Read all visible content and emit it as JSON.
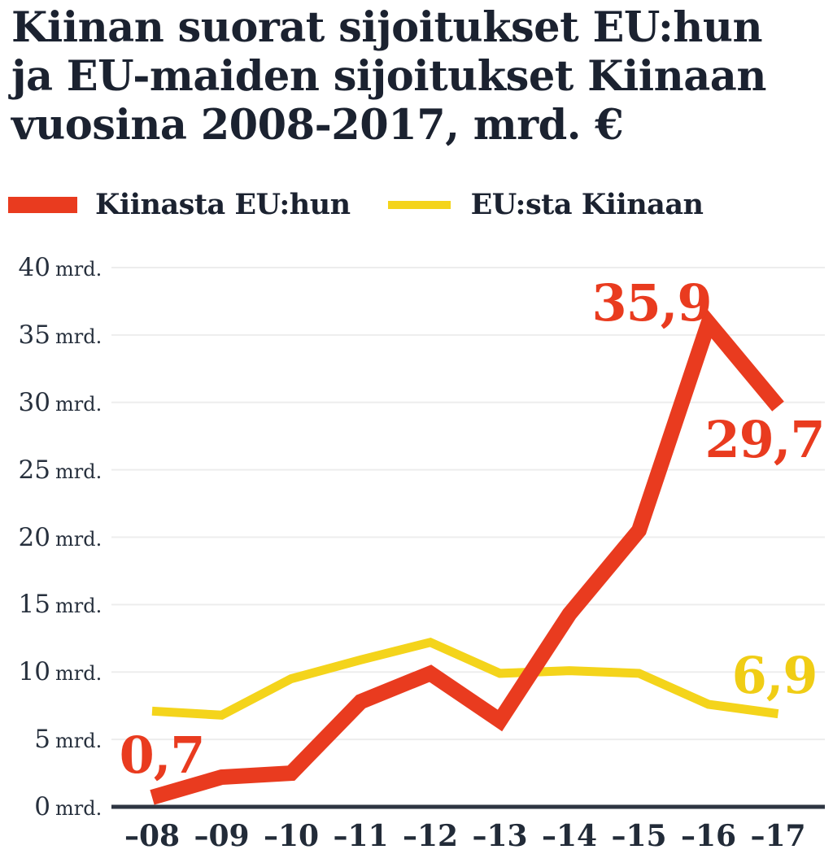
{
  "title": {
    "lines": [
      "Kiinan suorat sijoitukset EU:hun",
      "ja EU-maiden sijoitukset Kiinaan",
      "vuosina 2008-2017, mrd. €"
    ]
  },
  "legend": [
    {
      "label": "Kiinasta EU:hun",
      "color": "#e93b1f"
    },
    {
      "label": "EU:sta Kiinaan",
      "color": "#f4d41b"
    }
  ],
  "colors": {
    "china_to_eu_line": "#e93b1f",
    "eu_to_china_line": "#f4d41b",
    "text_dark": "#1b2230",
    "axis_line": "#2d3542",
    "gridline": "#ededed"
  },
  "chart_data": {
    "type": "line",
    "title": "Kiinan suorat sijoitukset EU:hun ja EU-maiden sijoitukset Kiinaan vuosina 2008-2017, mrd. €",
    "unit": "mrd. €",
    "x": [
      2008,
      2009,
      2010,
      2011,
      2012,
      2013,
      2014,
      2015,
      2016,
      2017
    ],
    "categories": [
      "–08",
      "–09",
      "–10",
      "–11",
      "–12",
      "–13",
      "–14",
      "–15",
      "–16",
      "–17"
    ],
    "series": [
      {
        "name": "Kiinasta EU:hun",
        "color": "#e93b1f",
        "values": [
          0.7,
          2.2,
          2.5,
          7.8,
          9.9,
          6.4,
          14.3,
          20.5,
          35.9,
          29.7
        ]
      },
      {
        "name": "EU:sta Kiinaan",
        "color": "#f4d41b",
        "values": [
          7.1,
          6.8,
          9.5,
          10.9,
          12.2,
          9.9,
          10.1,
          9.9,
          7.6,
          6.9
        ]
      }
    ],
    "yticks": [
      0,
      5,
      10,
      15,
      20,
      25,
      30,
      35,
      40
    ],
    "ytick_suffix": "mrd.",
    "ylim": [
      0,
      40
    ],
    "grid": true,
    "legend_position": "top",
    "annotations": [
      {
        "text": "0,7",
        "series": "Kiinasta EU:hun",
        "year": 2008,
        "value": 0.7
      },
      {
        "text": "35,9",
        "series": "Kiinasta EU:hun",
        "year": 2016,
        "value": 35.9
      },
      {
        "text": "29,7",
        "series": "Kiinasta EU:hun",
        "year": 2017,
        "value": 29.7
      },
      {
        "text": "6,9",
        "series": "EU:sta Kiinaan",
        "year": 2017,
        "value": 6.9
      }
    ]
  }
}
